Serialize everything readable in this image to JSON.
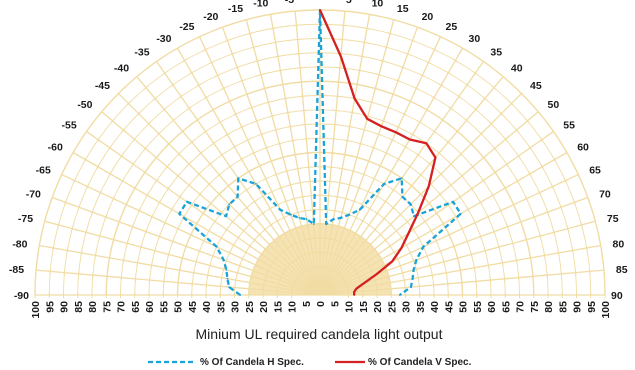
{
  "chart_data": {
    "type": "polar-line",
    "xlabel": "Minium UL required candela light output",
    "angle_ticks": [
      -90,
      -85,
      -80,
      -75,
      -70,
      -65,
      -60,
      -55,
      -50,
      -45,
      -40,
      -35,
      -30,
      -25,
      -20,
      -15,
      -10,
      -5,
      0,
      5,
      10,
      15,
      20,
      25,
      30,
      35,
      40,
      45,
      50,
      55,
      60,
      65,
      70,
      75,
      80,
      85,
      90
    ],
    "radial_ticks": [
      100,
      95,
      90,
      85,
      80,
      75,
      70,
      65,
      60,
      55,
      50,
      45,
      40,
      35,
      30,
      25,
      20,
      15,
      10,
      5,
      0,
      5,
      10,
      15,
      20,
      25,
      30,
      35,
      40,
      45,
      50,
      55,
      60,
      65,
      70,
      75,
      80,
      85,
      90,
      95,
      100
    ],
    "radial_range": [
      0,
      100
    ],
    "series": [
      {
        "name": "% Of Candela H Spec.",
        "style": "dashed",
        "color": "#1aa3d9",
        "angles": [
          -90,
          -85,
          -80,
          -75,
          -70,
          -65,
          -60,
          -55,
          -50,
          -45,
          -40,
          -35,
          -30,
          -25,
          -20,
          -15,
          -10,
          -5,
          0,
          5,
          10,
          15,
          20,
          25,
          30,
          35,
          40,
          45,
          50,
          55,
          60,
          65,
          70,
          75,
          80,
          85,
          90
        ],
        "values": [
          28,
          32,
          33,
          34,
          36,
          40,
          57,
          57,
          43,
          45,
          45,
          50,
          45,
          33,
          30,
          28,
          27,
          25,
          100,
          25,
          27,
          28,
          30,
          33,
          45,
          50,
          45,
          45,
          43,
          57,
          57,
          40,
          36,
          34,
          33,
          32,
          28
        ]
      },
      {
        "name": "% Of Candela V Spec.",
        "style": "solid",
        "color": "#d42020",
        "angles": [
          0,
          5,
          10,
          15,
          20,
          25,
          30,
          35,
          40,
          45,
          50,
          55,
          60,
          65,
          70,
          75,
          80,
          85,
          90
        ],
        "values": [
          100,
          84,
          70,
          64,
          63,
          63,
          63,
          65,
          63,
          54,
          45,
          38,
          33,
          28,
          21,
          16,
          13,
          12,
          12
        ]
      }
    ],
    "legend": {
      "position": "bottom-center"
    },
    "colors": {
      "grid": "#f1dca4",
      "hub": "#f6e3b4",
      "axis": "#1a1a1a"
    }
  }
}
